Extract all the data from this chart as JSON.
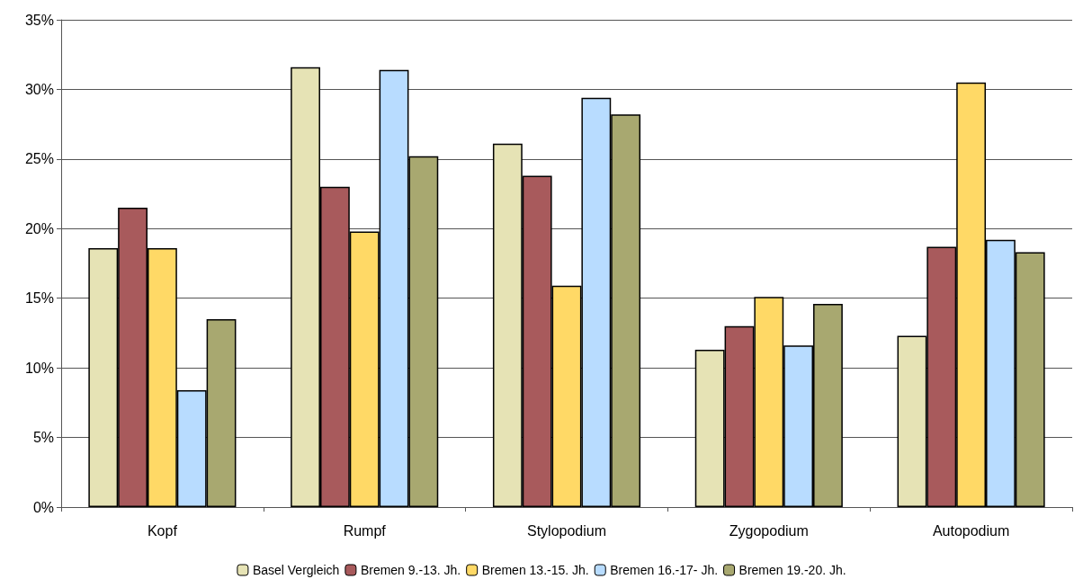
{
  "chart_data": {
    "type": "bar",
    "categories": [
      "Kopf",
      "Rumpf",
      "Stylopodium",
      "Zygopodium",
      "Autopodium"
    ],
    "series": [
      {
        "name": "Basel Vergleich",
        "color": "#e6e3b5",
        "values": [
          18.6,
          31.6,
          26.1,
          11.3,
          12.3
        ]
      },
      {
        "name": "Bremen 9.-13. Jh.",
        "color": "#a85a5c",
        "values": [
          21.5,
          23.0,
          23.8,
          13.0,
          18.7
        ]
      },
      {
        "name": "Bremen 13.-15. Jh.",
        "color": "#ffd966",
        "values": [
          18.6,
          19.8,
          15.9,
          15.1,
          30.5
        ]
      },
      {
        "name": "Bremen 16.-17- Jh.",
        "color": "#b8dcff",
        "values": [
          8.4,
          31.4,
          29.4,
          11.6,
          19.2
        ]
      },
      {
        "name": "Bremen 19.-20. Jh.",
        "color": "#a8a870",
        "values": [
          13.5,
          25.2,
          28.2,
          14.6,
          18.3
        ]
      }
    ],
    "ylim": [
      0,
      35
    ],
    "yticks": [
      {
        "value": 0,
        "label": "0%"
      },
      {
        "value": 5,
        "label": "5%"
      },
      {
        "value": 10,
        "label": "10%"
      },
      {
        "value": 15,
        "label": "15%"
      },
      {
        "value": 20,
        "label": "20%"
      },
      {
        "value": 25,
        "label": "25%"
      },
      {
        "value": 30,
        "label": "30%"
      },
      {
        "value": 35,
        "label": "35%"
      }
    ],
    "grid": "y",
    "legend": "bottom"
  }
}
